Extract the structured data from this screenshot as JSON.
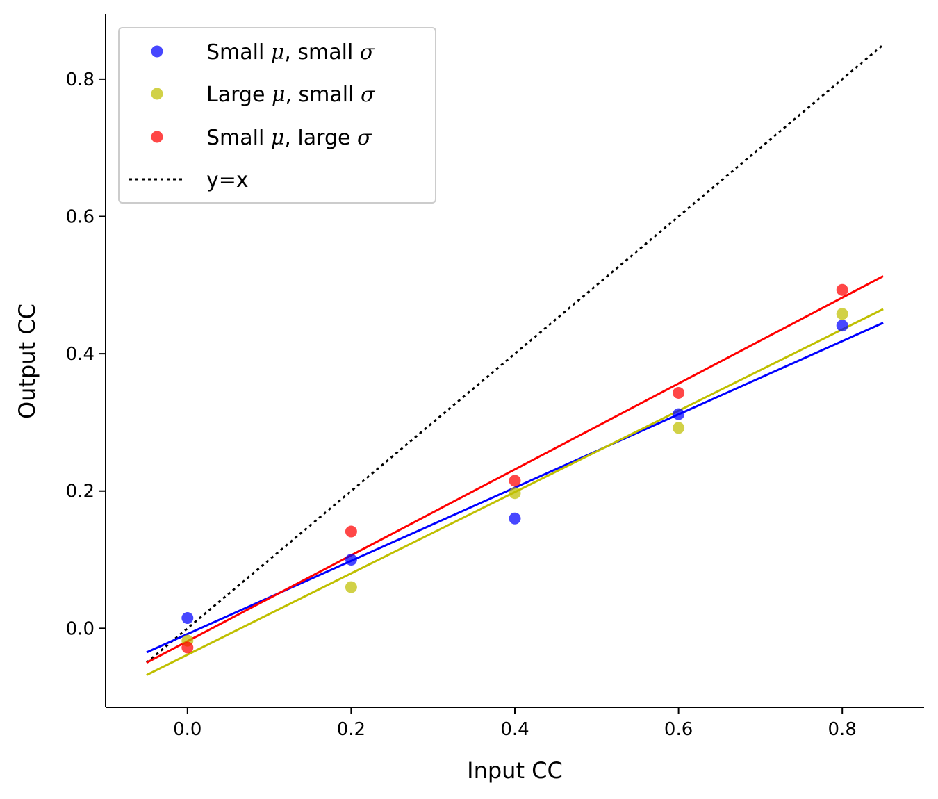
{
  "chart_data": {
    "type": "scatter",
    "title": "",
    "xlabel": "Input CC",
    "ylabel": "Output CC",
    "xlim": [
      -0.1,
      0.9
    ],
    "ylim": [
      -0.115,
      0.895
    ],
    "xticks": [
      0.0,
      0.2,
      0.4,
      0.6,
      0.8
    ],
    "xtick_labels": [
      "0.0",
      "0.2",
      "0.4",
      "0.6",
      "0.8"
    ],
    "yticks": [
      0.0,
      0.2,
      0.4,
      0.6,
      0.8
    ],
    "ytick_labels": [
      "0.0",
      "0.2",
      "0.4",
      "0.6",
      "0.8"
    ],
    "grid": false,
    "legend_position": "top-left",
    "series": [
      {
        "name_parts": [
          "Small ",
          "μ",
          ", small ",
          "σ"
        ],
        "color": "#0000ff",
        "x": [
          0.0,
          0.2,
          0.4,
          0.6,
          0.8
        ],
        "y": [
          0.015,
          0.1,
          0.16,
          0.312,
          0.441
        ],
        "fit": {
          "x": [
            -0.05,
            0.85
          ],
          "y": [
            -0.035,
            0.445
          ]
        }
      },
      {
        "name_parts": [
          "Large ",
          "μ",
          ", small ",
          "σ"
        ],
        "color": "#bfbf00",
        "x": [
          0.0,
          0.2,
          0.4,
          0.6,
          0.8
        ],
        "y": [
          -0.018,
          0.06,
          0.197,
          0.292,
          0.458
        ],
        "fit": {
          "x": [
            -0.05,
            0.85
          ],
          "y": [
            -0.068,
            0.465
          ]
        }
      },
      {
        "name_parts": [
          "Small ",
          "μ",
          ", large ",
          "σ"
        ],
        "color": "#ff0000",
        "x": [
          0.0,
          0.2,
          0.4,
          0.6,
          0.8
        ],
        "y": [
          -0.028,
          0.141,
          0.215,
          0.343,
          0.493
        ],
        "fit": {
          "x": [
            -0.05,
            0.85
          ],
          "y": [
            -0.05,
            0.513
          ]
        }
      }
    ],
    "reference_line": {
      "name": "y=x",
      "color": "#000000",
      "style": "dotted",
      "x": [
        -0.05,
        0.85
      ],
      "y": [
        -0.05,
        0.85
      ]
    }
  }
}
